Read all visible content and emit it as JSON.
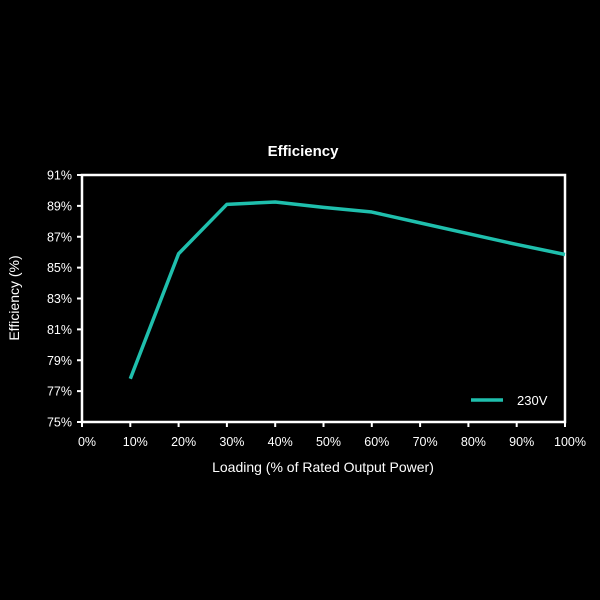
{
  "chart_data": {
    "type": "line",
    "title": "Efficiency",
    "xlabel": "Loading (% of Rated Output Power)",
    "ylabel": "Efficiency (%)",
    "x": [
      10,
      20,
      30,
      40,
      50,
      60,
      70,
      80,
      90,
      100
    ],
    "series": [
      {
        "name": "230V",
        "color": "#1fbfad",
        "values": [
          77.8,
          85.9,
          89.1,
          89.25,
          88.9,
          88.6,
          87.9,
          87.2,
          86.5,
          85.85
        ]
      }
    ],
    "xlim": [
      0,
      100
    ],
    "ylim": [
      75,
      91
    ],
    "xticks": [
      0,
      10,
      20,
      30,
      40,
      50,
      60,
      70,
      80,
      90,
      100
    ],
    "xtick_labels": [
      "0%",
      "10%",
      "20%",
      "30%",
      "40%",
      "50%",
      "60%",
      "70%",
      "80%",
      "90%",
      "100%"
    ],
    "yticks": [
      75,
      77,
      79,
      81,
      83,
      85,
      87,
      89,
      91
    ],
    "ytick_labels": [
      "75%",
      "77%",
      "79%",
      "81%",
      "83%",
      "85%",
      "87%",
      "89%",
      "91%"
    ],
    "grid": false,
    "legend_position": "bottom-right",
    "background": "#000000"
  }
}
